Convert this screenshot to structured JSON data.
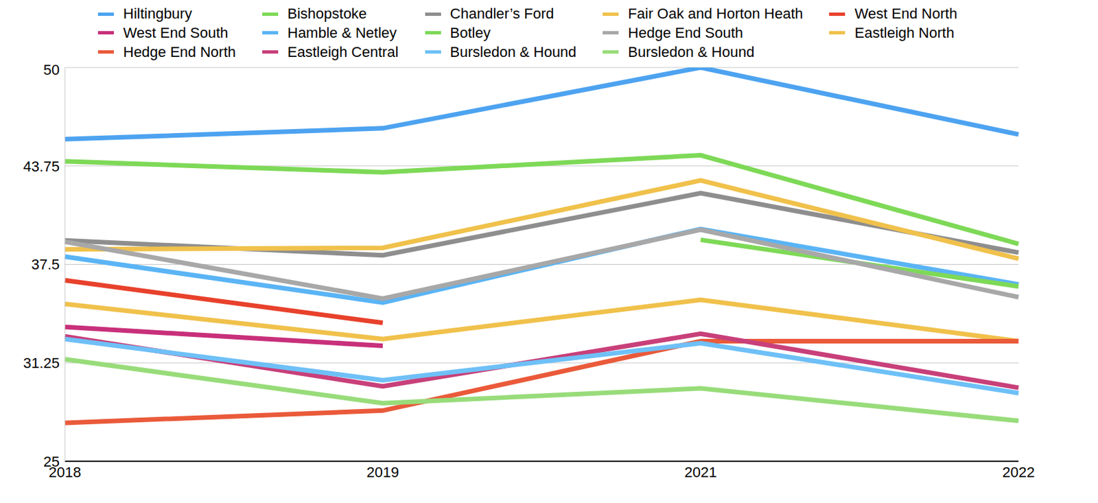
{
  "chart_data": {
    "type": "line",
    "categories": [
      "2018",
      "2019",
      "2021",
      "2022"
    ],
    "ylim": [
      25,
      50
    ],
    "yticks": [
      25,
      31.25,
      37.5,
      43.75,
      50
    ],
    "grid": true,
    "legend": "top",
    "series": [
      {
        "name": "Hiltingbury",
        "color": "#4da3f0",
        "values": [
          45.45,
          46.14,
          50,
          45.75
        ]
      },
      {
        "name": "Bishopstoke",
        "color": "#7ed957",
        "values": [
          44.04,
          43.35,
          44.43,
          38.8
        ]
      },
      {
        "name": "Chandler’s Ford",
        "color": "#8e8e8e",
        "values": [
          39.02,
          38.08,
          42.02,
          38.25
        ]
      },
      {
        "name": "Fair Oak and Horton Heath",
        "color": "#f0c14b",
        "values": [
          38.46,
          38.55,
          42.83,
          37.86
        ]
      },
      {
        "name": "West End North",
        "color": "#e8412c",
        "values": [
          36.49,
          33.79,
          null,
          null
        ]
      },
      {
        "name": "West End South",
        "color": "#c8307a",
        "values": [
          33.53,
          32.33,
          null,
          null
        ]
      },
      {
        "name": "Hamble & Netley",
        "color": "#5ab4f5",
        "values": [
          37.99,
          35.08,
          39.75,
          36.23
        ]
      },
      {
        "name": "Botley",
        "color": "#7ed957",
        "values": [
          null,
          null,
          39.06,
          36.1
        ]
      },
      {
        "name": "Hedge End South",
        "color": "#a8a8a8",
        "values": [
          38.94,
          35.33,
          39.7,
          35.42
        ]
      },
      {
        "name": "Eastleigh North",
        "color": "#f0c14b",
        "values": [
          34.99,
          32.76,
          35.25,
          32.63
        ]
      },
      {
        "name": "Hedge End North",
        "color": "#ea5a3a",
        "values": [
          27.44,
          28.22,
          32.63,
          32.63
        ]
      },
      {
        "name": "Eastleigh Central",
        "color": "#c8407a",
        "values": [
          32.93,
          29.76,
          33.1,
          29.67
        ]
      },
      {
        "name": "Bursledon & Hound",
        "color": "#6ec0f7",
        "values": [
          32.76,
          30.15,
          32.5,
          29.33
        ]
      },
      {
        "name": "Bursledon & Hound",
        "color": "#98dc7a",
        "values": [
          31.48,
          28.69,
          29.63,
          27.57
        ]
      }
    ]
  }
}
